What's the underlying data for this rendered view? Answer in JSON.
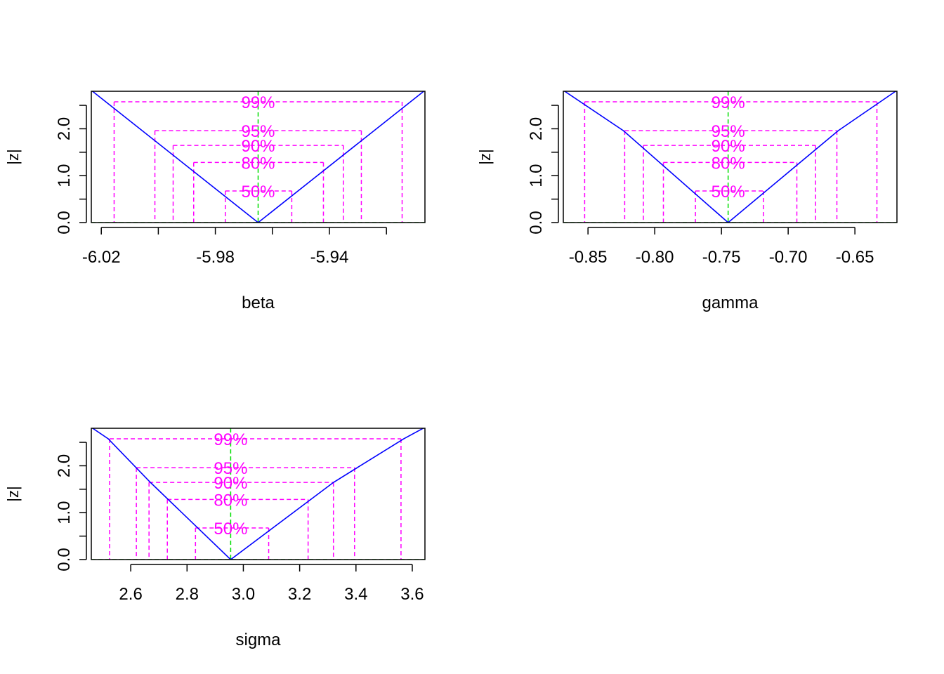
{
  "colors": {
    "curve": "#0000ff",
    "interval": "#ff00ff",
    "estimate": "#00dd00",
    "frame": "#000000"
  },
  "chart_data": [
    {
      "type": "line",
      "xlabel": "beta",
      "ylabel": "|z|",
      "xlim": [
        -6.0235,
        -5.9065
      ],
      "ylim": [
        0,
        2.8
      ],
      "xticks": [
        -6.02,
        -6.0,
        -5.98,
        -5.96,
        -5.94,
        -5.92
      ],
      "xtick_labels": [
        "-6.02",
        "",
        "-5.98",
        "",
        "-5.94",
        ""
      ],
      "yticks": [
        0,
        0.5,
        1.0,
        1.5,
        2.0,
        2.5
      ],
      "ytick_labels": [
        "0.0",
        "",
        "1.0",
        "",
        "2.0",
        ""
      ],
      "estimate": -5.965,
      "curve": {
        "x": [
          -6.0235,
          -5.965,
          -5.9065
        ],
        "y": [
          2.82,
          0,
          2.82
        ]
      },
      "intervals": [
        {
          "label": "50%",
          "z": 0.674,
          "lower": -5.9765,
          "upper": -5.9532
        },
        {
          "label": "80%",
          "z": 1.282,
          "lower": -5.9876,
          "upper": -5.9421
        },
        {
          "label": "90%",
          "z": 1.645,
          "lower": -5.9948,
          "upper": -5.9351
        },
        {
          "label": "95%",
          "z": 1.96,
          "lower": -6.0012,
          "upper": -5.9288
        },
        {
          "label": "99%",
          "z": 2.576,
          "lower": -6.0155,
          "upper": -5.9145
        }
      ]
    },
    {
      "type": "line",
      "xlabel": "gamma",
      "ylabel": "|z|",
      "xlim": [
        -0.8685,
        -0.6185
      ],
      "ylim": [
        0,
        2.8
      ],
      "xticks": [
        -0.85,
        -0.8,
        -0.75,
        -0.7,
        -0.65
      ],
      "xtick_labels": [
        "-0.85",
        "-0.80",
        "-0.75",
        "-0.70",
        "-0.65"
      ],
      "yticks": [
        0,
        0.5,
        1.0,
        1.5,
        2.0,
        2.5
      ],
      "ytick_labels": [
        "0.0",
        "",
        "1.0",
        "",
        "2.0",
        ""
      ],
      "estimate": -0.745,
      "curve": {
        "x": [
          -0.8685,
          -0.8235,
          -0.745,
          -0.6625,
          -0.6185
        ],
        "y": [
          2.82,
          1.96,
          0,
          1.96,
          2.82
        ]
      },
      "intervals": [
        {
          "label": "50%",
          "z": 0.674,
          "lower": -0.7695,
          "upper": -0.7185
        },
        {
          "label": "80%",
          "z": 1.282,
          "lower": -0.7935,
          "upper": -0.6935
        },
        {
          "label": "90%",
          "z": 1.645,
          "lower": -0.8085,
          "upper": -0.6795
        },
        {
          "label": "95%",
          "z": 1.96,
          "lower": -0.8225,
          "upper": -0.6635
        },
        {
          "label": "99%",
          "z": 2.576,
          "lower": -0.8525,
          "upper": -0.6335
        }
      ]
    },
    {
      "type": "line",
      "xlabel": "sigma",
      "ylabel": "|z|",
      "xlim": [
        2.46,
        3.645
      ],
      "ylim": [
        0,
        2.8
      ],
      "xticks": [
        2.6,
        2.8,
        3.0,
        3.2,
        3.4,
        3.6
      ],
      "xtick_labels": [
        "2.6",
        "2.8",
        "3.0",
        "3.2",
        "3.4",
        "3.6"
      ],
      "yticks": [
        0,
        0.5,
        1.0,
        1.5,
        2.0,
        2.5
      ],
      "ytick_labels": [
        "0.0",
        "",
        "1.0",
        "",
        "2.0",
        ""
      ],
      "estimate": 2.955,
      "curve": {
        "x": [
          2.46,
          2.52,
          2.67,
          2.955,
          3.32,
          3.57,
          3.645
        ],
        "y": [
          2.82,
          2.576,
          1.645,
          0,
          1.645,
          2.576,
          2.82
        ]
      },
      "intervals": [
        {
          "label": "50%",
          "z": 0.674,
          "lower": 2.83,
          "upper": 3.09
        },
        {
          "label": "80%",
          "z": 1.282,
          "lower": 2.73,
          "upper": 3.23
        },
        {
          "label": "90%",
          "z": 1.645,
          "lower": 2.665,
          "upper": 3.32
        },
        {
          "label": "95%",
          "z": 1.96,
          "lower": 2.62,
          "upper": 3.395
        },
        {
          "label": "99%",
          "z": 2.576,
          "lower": 2.525,
          "upper": 3.56
        }
      ]
    }
  ]
}
